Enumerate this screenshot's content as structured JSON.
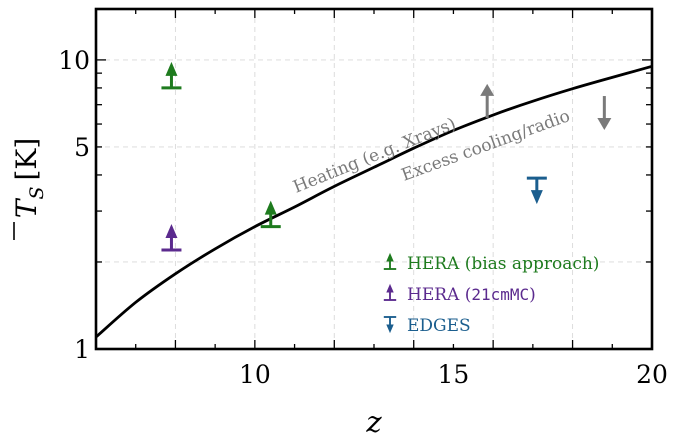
{
  "chart_data": {
    "type": "scatter",
    "xlabel": "z",
    "ylabel_main": "T",
    "ylabel_sub": "S",
    "ylabel_unit": "[K]",
    "x_scale": "linear",
    "y_scale": "log",
    "xlim": [
      6,
      20
    ],
    "ylim": [
      1,
      15
    ],
    "x_ticks": [
      10,
      15,
      20
    ],
    "y_ticks": [
      1,
      5,
      10
    ],
    "grid": true,
    "legend_position": "lower-right",
    "curve": {
      "x": [
        6,
        7,
        8,
        9,
        10,
        11,
        12,
        13,
        14,
        15,
        16,
        17,
        18,
        19,
        20
      ],
      "y": [
        1.1,
        1.45,
        1.82,
        2.22,
        2.65,
        3.1,
        3.65,
        4.25,
        4.95,
        5.7,
        6.45,
        7.2,
        7.95,
        8.7,
        9.5
      ],
      "color": "#000000"
    },
    "series": [
      {
        "name": "HERA (bias approach)",
        "color": "#1e7b1e",
        "marker": "lower-limit",
        "points": [
          {
            "x": 7.9,
            "y": 8.0
          },
          {
            "x": 10.4,
            "y": 2.65
          }
        ]
      },
      {
        "name": "HERA (",
        "name_mono": "21cmMC",
        "name_suffix": ")",
        "color": "#5b2a8e",
        "marker": "lower-limit",
        "points": [
          {
            "x": 7.9,
            "y": 2.2
          }
        ]
      },
      {
        "name": "EDGES",
        "color": "#1b5e8e",
        "marker": "upper-limit",
        "points": [
          {
            "x": 17.1,
            "y": 3.9
          }
        ]
      }
    ],
    "annotations": {
      "heating": "Heating (e.g. Xrays)",
      "cooling": "Excess cooling/radio",
      "arrow_color": "#7a7a7a",
      "up_arrow_at": {
        "x": 15.85,
        "y": 6.3
      },
      "down_arrow_at": {
        "x": 18.8,
        "y": 7.5
      }
    }
  }
}
